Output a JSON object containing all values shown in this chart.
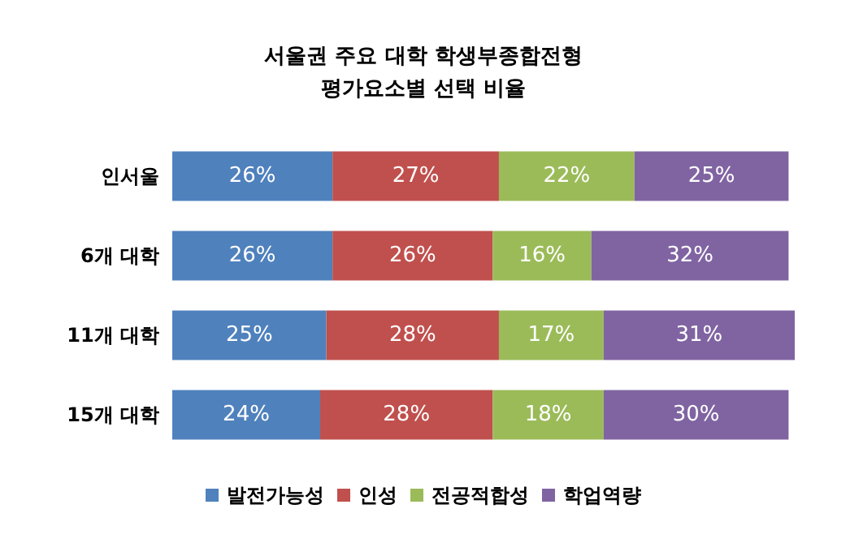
{
  "chart_data": {
    "type": "bar",
    "title": "서울권 주요 대학 학생부종합전형\n평가요소별 선택 비율",
    "orientation": "horizontal",
    "stacked": true,
    "legend": "bottom",
    "categories": [
      "인서울",
      "6개 대학",
      "11개 대학",
      "15개 대학"
    ],
    "series": [
      {
        "name": "발전가능성",
        "color": "#4f81bd",
        "values": [
          26,
          26,
          25,
          24
        ],
        "value_labels": [
          "26%",
          "26%",
          "25%",
          "24%"
        ]
      },
      {
        "name": "인성",
        "color": "#c0504d",
        "values": [
          27,
          26,
          28,
          28
        ],
        "value_labels": [
          "27%",
          "26%",
          "28%",
          "28%"
        ]
      },
      {
        "name": "전공적합성",
        "color": "#9bbb59",
        "values": [
          22,
          16,
          17,
          18
        ],
        "value_labels": [
          "22%",
          "16%",
          "17%",
          "18%"
        ]
      },
      {
        "name": "학업역량",
        "color": "#8064a2",
        "values": [
          25,
          32,
          31,
          30
        ],
        "value_labels": [
          "25%",
          "32%",
          "31%",
          "30%"
        ]
      }
    ]
  }
}
